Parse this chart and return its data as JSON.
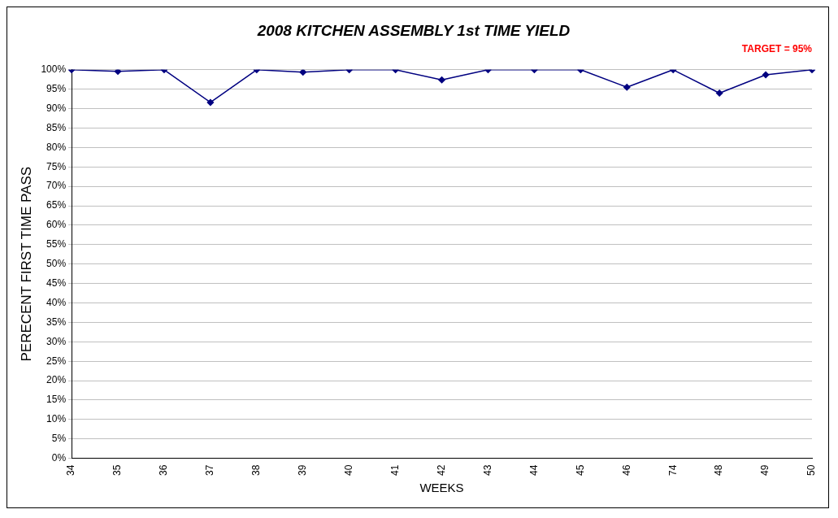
{
  "chart_data": {
    "type": "line",
    "title": "2008 KITCHEN ASSEMBLY 1st TIME YIELD",
    "xlabel": "WEEKS",
    "ylabel": "PERECENT FIRST TIME PASS",
    "annotations": [
      "TARGET = 95%"
    ],
    "categories": [
      "34",
      "35",
      "36",
      "37",
      "38",
      "39",
      "40",
      "41",
      "42",
      "43",
      "44",
      "45",
      "46",
      "74",
      "48",
      "49",
      "50"
    ],
    "series": [
      {
        "color": "#000080",
        "values": [
          100,
          99.6,
          100,
          91.6,
          100,
          99.4,
          100,
          100,
          97.4,
          100,
          100,
          100,
          95.5,
          100,
          94.0,
          98.7,
          100
        ]
      }
    ],
    "ylim": [
      0,
      100
    ],
    "yticks": [
      {
        "value": 0,
        "label": "0%"
      },
      {
        "value": 5,
        "label": "5%"
      },
      {
        "value": 10,
        "label": "10%"
      },
      {
        "value": 15,
        "label": "15%"
      },
      {
        "value": 20,
        "label": "20%"
      },
      {
        "value": 25,
        "label": "25%"
      },
      {
        "value": 30,
        "label": "30%"
      },
      {
        "value": 35,
        "label": "35%"
      },
      {
        "value": 40,
        "label": "40%"
      },
      {
        "value": 45,
        "label": "45%"
      },
      {
        "value": 50,
        "label": "50%"
      },
      {
        "value": 55,
        "label": "55%"
      },
      {
        "value": 60,
        "label": "60%"
      },
      {
        "value": 65,
        "label": "65%"
      },
      {
        "value": 70,
        "label": "70%"
      },
      {
        "value": 75,
        "label": "75%"
      },
      {
        "value": 80,
        "label": "80%"
      },
      {
        "value": 85,
        "label": "85%"
      },
      {
        "value": 90,
        "label": "90%"
      },
      {
        "value": 95,
        "label": "95%"
      },
      {
        "value": 100,
        "label": "100%"
      }
    ],
    "grid": "y",
    "legend": false,
    "marker": "diamond",
    "line_style": "solid"
  }
}
